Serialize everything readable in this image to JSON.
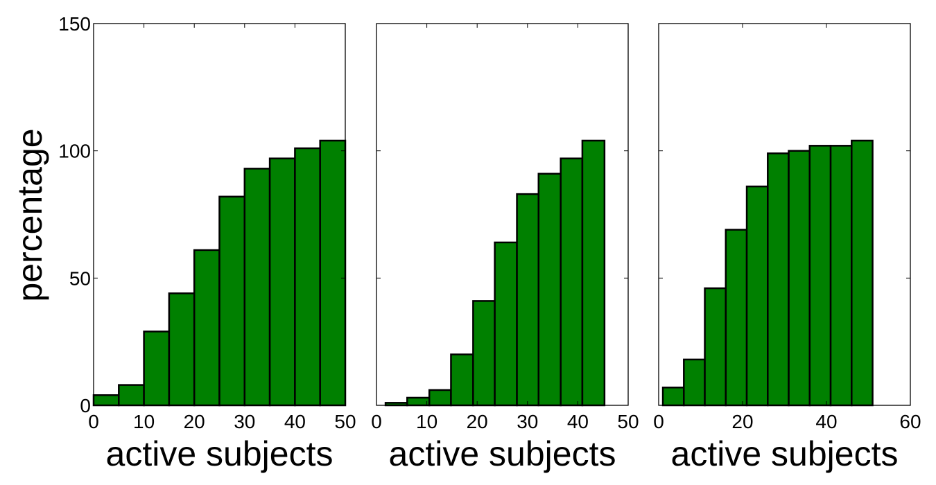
{
  "chart_data": [
    {
      "type": "bar",
      "xlabel": "active subjects",
      "ylabel": "percentage",
      "xlim": [
        0,
        50
      ],
      "ylim": [
        0,
        150
      ],
      "xticks": [
        "0",
        "10",
        "20",
        "30",
        "40",
        "50"
      ],
      "yticks": [
        "0",
        "50",
        "100",
        "150"
      ],
      "bar_color": "#008000",
      "bins": [
        {
          "x0": 0,
          "x1": 5,
          "value": 4
        },
        {
          "x0": 5,
          "x1": 10,
          "value": 8
        },
        {
          "x0": 10,
          "x1": 15,
          "value": 29
        },
        {
          "x0": 15,
          "x1": 20,
          "value": 44
        },
        {
          "x0": 20,
          "x1": 25,
          "value": 61
        },
        {
          "x0": 25,
          "x1": 30,
          "value": 82
        },
        {
          "x0": 30,
          "x1": 35,
          "value": 93
        },
        {
          "x0": 35,
          "x1": 40,
          "value": 97
        },
        {
          "x0": 40,
          "x1": 45,
          "value": 101
        },
        {
          "x0": 45,
          "x1": 50,
          "value": 104
        }
      ]
    },
    {
      "type": "bar",
      "xlabel": "active subjects",
      "ylabel": "",
      "xlim": [
        0,
        50
      ],
      "ylim": [
        0,
        150
      ],
      "xticks": [
        "0",
        "10",
        "20",
        "30",
        "40",
        "50"
      ],
      "yticks": [],
      "bar_color": "#008000",
      "bins": [
        {
          "x0": 1.8,
          "x1": 6.1,
          "value": 1
        },
        {
          "x0": 6.1,
          "x1": 10.5,
          "value": 3
        },
        {
          "x0": 10.5,
          "x1": 14.8,
          "value": 6
        },
        {
          "x0": 14.8,
          "x1": 19.2,
          "value": 20
        },
        {
          "x0": 19.2,
          "x1": 23.5,
          "value": 41
        },
        {
          "x0": 23.5,
          "x1": 27.9,
          "value": 64
        },
        {
          "x0": 27.9,
          "x1": 32.2,
          "value": 83
        },
        {
          "x0": 32.2,
          "x1": 36.6,
          "value": 91
        },
        {
          "x0": 36.6,
          "x1": 40.9,
          "value": 97
        },
        {
          "x0": 40.9,
          "x1": 45.3,
          "value": 104
        }
      ]
    },
    {
      "type": "bar",
      "xlabel": "active subjects",
      "ylabel": "",
      "xlim": [
        0,
        60
      ],
      "ylim": [
        0,
        150
      ],
      "xticks": [
        "0",
        "20",
        "40",
        "60"
      ],
      "yticks": [],
      "bar_color": "#008000",
      "bins": [
        {
          "x0": 1.0,
          "x1": 6.0,
          "value": 7
        },
        {
          "x0": 6.0,
          "x1": 11.0,
          "value": 18
        },
        {
          "x0": 11.0,
          "x1": 16.0,
          "value": 46
        },
        {
          "x0": 16.0,
          "x1": 21.0,
          "value": 69
        },
        {
          "x0": 21.0,
          "x1": 26.0,
          "value": 86
        },
        {
          "x0": 26.0,
          "x1": 31.0,
          "value": 99
        },
        {
          "x0": 31.0,
          "x1": 36.0,
          "value": 100
        },
        {
          "x0": 36.0,
          "x1": 41.0,
          "value": 102
        },
        {
          "x0": 41.0,
          "x1": 46.0,
          "value": 102
        },
        {
          "x0": 46.0,
          "x1": 51.0,
          "value": 104
        }
      ]
    }
  ]
}
